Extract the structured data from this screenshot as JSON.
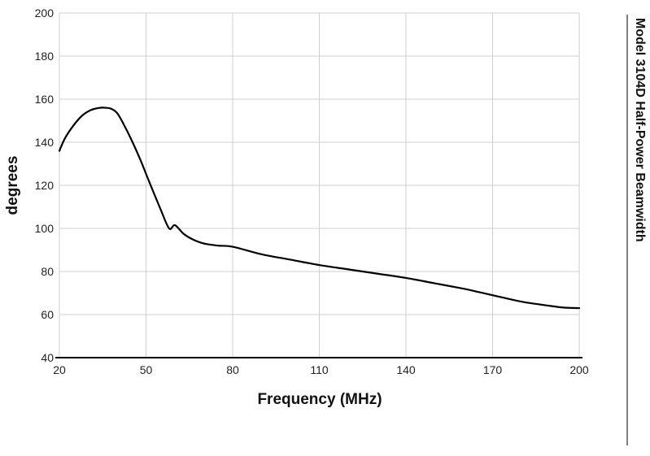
{
  "chart_data": {
    "type": "line",
    "title": "Model 3104D Half-Power Beamwidth",
    "xlabel": "Frequency (MHz)",
    "ylabel": "degrees",
    "xlim": [
      20,
      200
    ],
    "ylim": [
      40,
      200
    ],
    "x_ticks": [
      "20",
      "50",
      "80",
      "110",
      "140",
      "170",
      "200"
    ],
    "y_ticks": [
      "200",
      "180",
      "160",
      "140",
      "120",
      "100",
      "80",
      "60",
      "40"
    ],
    "grid": true,
    "legend": "none",
    "line_color": "#000000",
    "grid_color": "#cfcfcf",
    "series": [
      {
        "x": [
          20,
          22,
          25,
          28,
          31,
          34,
          36,
          38,
          40,
          42,
          45,
          48,
          51,
          55,
          58,
          60,
          63,
          66,
          70,
          75,
          80,
          90,
          100,
          110,
          120,
          130,
          140,
          150,
          160,
          165,
          170,
          180,
          190,
          195,
          200
        ],
        "y": [
          136,
          142,
          148,
          152.5,
          155,
          156,
          156,
          155.5,
          153.5,
          149,
          141,
          132,
          122,
          109,
          100,
          101.5,
          97.5,
          95,
          93,
          92,
          91.5,
          88,
          85.5,
          83,
          81,
          79,
          77,
          74.5,
          72,
          70.5,
          69,
          66,
          64,
          63.2,
          63
        ]
      }
    ]
  }
}
